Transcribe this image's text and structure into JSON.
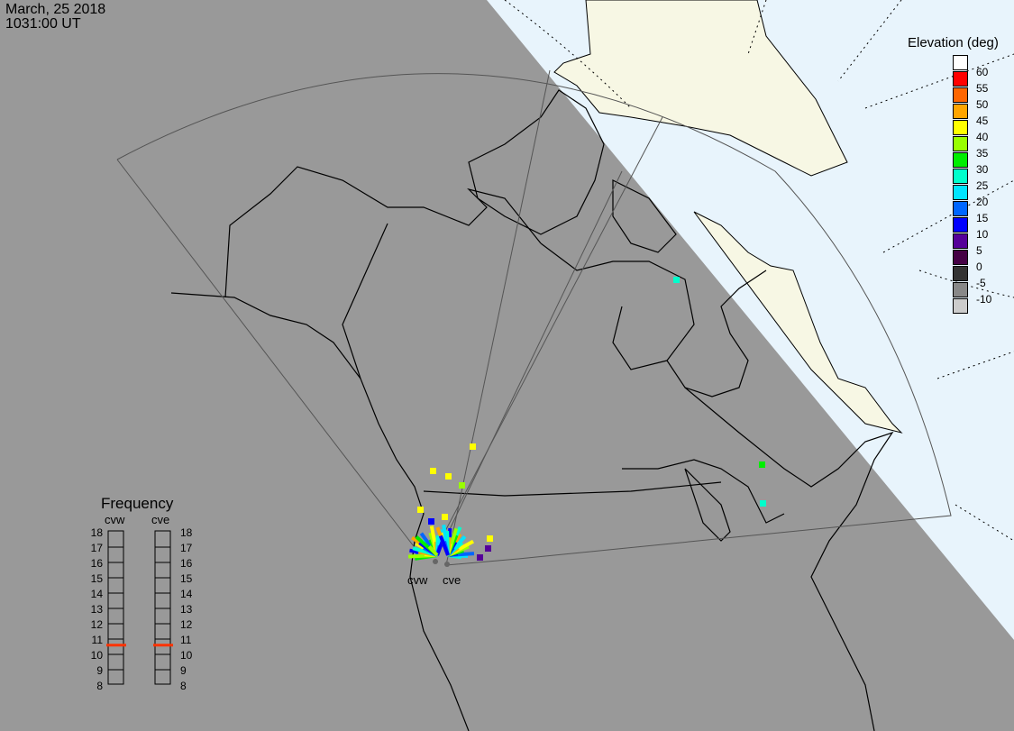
{
  "header": {
    "date": "March, 25 2018",
    "time": "1031:00 UT"
  },
  "map": {
    "night_color": "#999999",
    "day_ocean_color": "#e8f4fc",
    "day_land_color": "#f7f7e4",
    "radar_labels": [
      "cvw",
      "cve"
    ]
  },
  "elevation_legend": {
    "title": "Elevation (deg)",
    "bins": [
      {
        "label": "60",
        "color": "#ffffff"
      },
      {
        "label": "55",
        "color": "#ff0000"
      },
      {
        "label": "50",
        "color": "#ff6600"
      },
      {
        "label": "45",
        "color": "#ffa500"
      },
      {
        "label": "40",
        "color": "#ffff00"
      },
      {
        "label": "35",
        "color": "#99ff00"
      },
      {
        "label": "30",
        "color": "#00ee00"
      },
      {
        "label": "25",
        "color": "#00ffcc"
      },
      {
        "label": "20",
        "color": "#00e5ff"
      },
      {
        "label": "15",
        "color": "#0066ff"
      },
      {
        "label": "10",
        "color": "#0000ff"
      },
      {
        "label": "5",
        "color": "#550099"
      },
      {
        "label": "0",
        "color": "#440044"
      },
      {
        "label": "-5",
        "color": "#333333"
      },
      {
        "label": "-10",
        "color": "#888888"
      },
      {
        "label": "",
        "color": "#cccccc"
      }
    ]
  },
  "frequency": {
    "title": "Frequency",
    "scale": [
      "18",
      "17",
      "16",
      "15",
      "14",
      "13",
      "12",
      "11",
      "10",
      "9",
      "8"
    ],
    "radars": [
      {
        "name": "cvw",
        "value_mhz": 10.6,
        "marker_color": "#ff3300"
      },
      {
        "name": "cve",
        "value_mhz": 10.6,
        "marker_color": "#ff3300"
      }
    ]
  }
}
